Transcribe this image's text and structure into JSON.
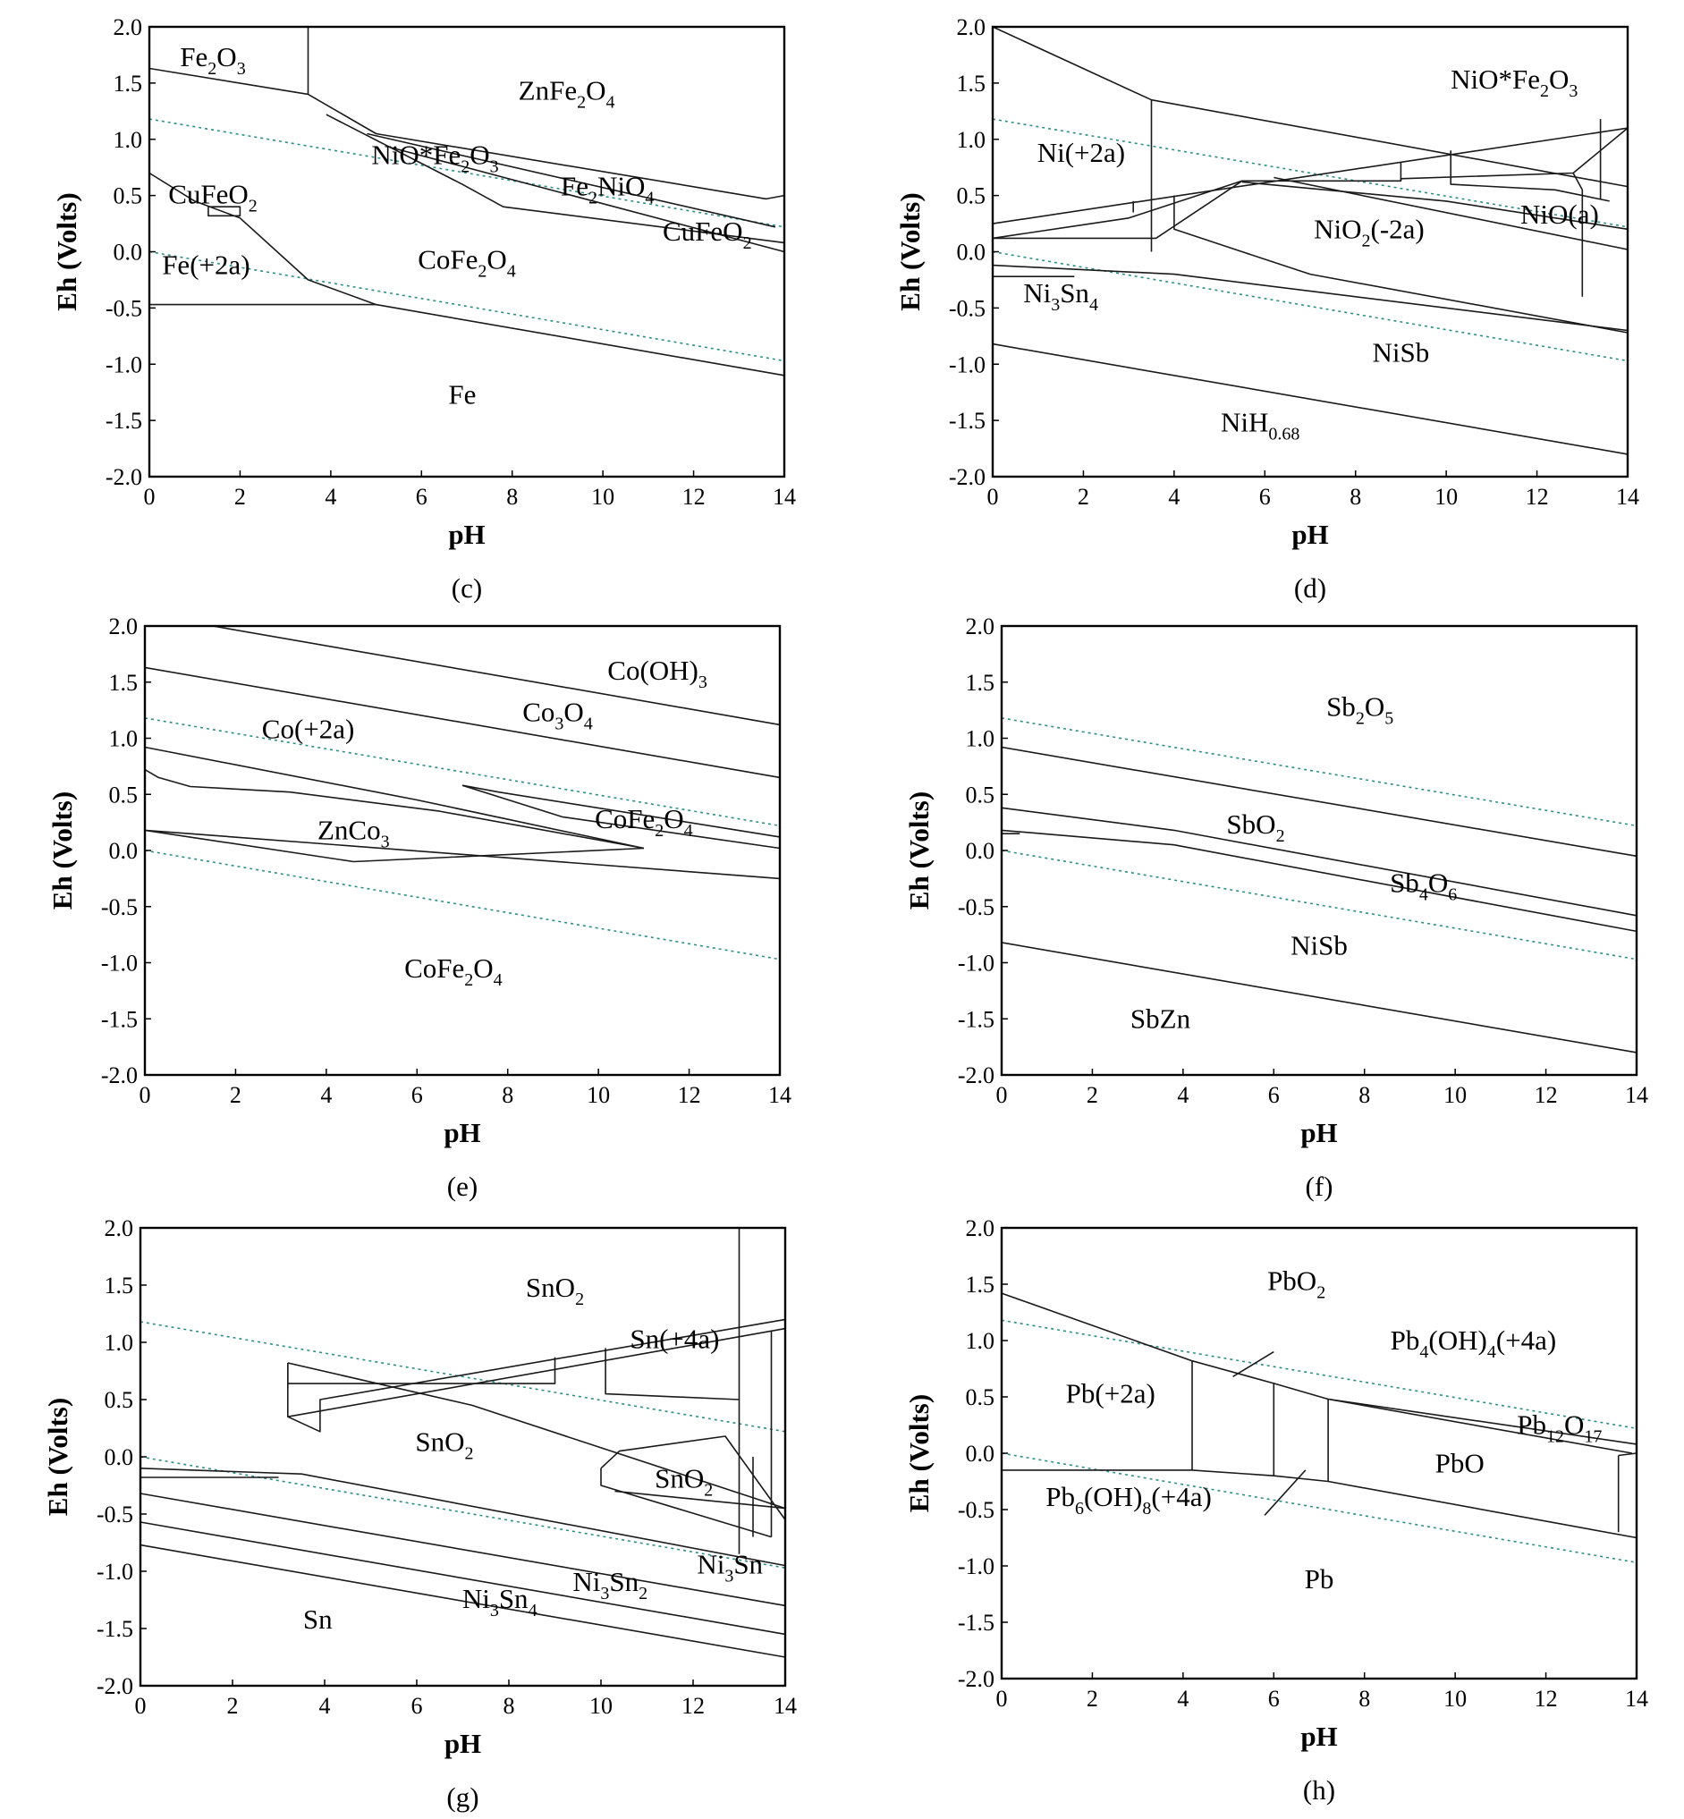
{
  "axes": {
    "xlabel": "pH",
    "ylabel": "Eh (Volts)",
    "xlim": [
      0,
      14
    ],
    "ylim": [
      -2.0,
      2.0
    ],
    "xticks": [
      "0",
      "2",
      "4",
      "6",
      "8",
      "10",
      "12",
      "14"
    ],
    "yticks": [
      "2.0",
      "1.5",
      "1.0",
      "0.5",
      "0.0",
      "-0.5",
      "-1.0",
      "-1.5",
      "-2.0"
    ]
  },
  "water_lines": {
    "upper": [
      [
        0,
        1.18
      ],
      [
        14,
        0.22
      ]
    ],
    "lower": [
      [
        0,
        0.0
      ],
      [
        14,
        -0.97
      ]
    ]
  },
  "panels": [
    {
      "id": "c",
      "caption": "(c)",
      "boundaries": [
        [
          [
            0,
            1.63
          ],
          [
            3.5,
            1.4
          ],
          [
            5,
            1.05
          ],
          [
            13.6,
            0.47
          ],
          [
            14,
            0.5
          ]
        ],
        [
          [
            3.5,
            2.0
          ],
          [
            3.5,
            1.4
          ]
        ],
        [
          [
            3.9,
            1.22
          ],
          [
            6.9,
            0.6
          ],
          [
            7.8,
            0.4
          ],
          [
            14,
            0.08
          ]
        ],
        [
          [
            4.8,
            1.05
          ],
          [
            13.8,
            0.22
          ]
        ],
        [
          [
            5.3,
            0.93
          ],
          [
            14,
            0.0
          ]
        ],
        [
          [
            0,
            0.7
          ],
          [
            1.0,
            0.45
          ],
          [
            2.0,
            0.3
          ],
          [
            3.5,
            -0.25
          ],
          [
            5,
            -0.47
          ],
          [
            14,
            -1.1
          ]
        ],
        [
          [
            0,
            -0.47
          ],
          [
            5,
            -0.47
          ]
        ],
        [
          [
            1.3,
            0.4
          ],
          [
            2.0,
            0.4
          ],
          [
            2.0,
            0.32
          ],
          [
            1.3,
            0.32
          ],
          [
            1.3,
            0.4
          ]
        ]
      ],
      "regions": [
        {
          "text": "Fe2O3",
          "x": 1.4,
          "y": 1.65
        },
        {
          "text": "ZnFe2O4",
          "x": 9.2,
          "y": 1.35
        },
        {
          "text": "NiO*Fe2O3",
          "x": 6.3,
          "y": 0.78
        },
        {
          "text": "Fe2NiO4",
          "x": 10.1,
          "y": 0.5
        },
        {
          "text": "CuFeO2",
          "x": 1.4,
          "y": 0.43
        },
        {
          "text": "CuFeO2",
          "x": 12.3,
          "y": 0.1
        },
        {
          "text": "CoFe2O4",
          "x": 7.0,
          "y": -0.15
        },
        {
          "text": "Fe(+2a)",
          "x": 1.25,
          "y": -0.2
        },
        {
          "text": "Fe",
          "x": 6.9,
          "y": -1.35
        }
      ]
    },
    {
      "id": "d",
      "caption": "(d)",
      "boundaries": [
        [
          [
            0,
            2.0
          ],
          [
            3.5,
            1.35
          ],
          [
            14,
            0.58
          ]
        ],
        [
          [
            3.5,
            1.35
          ],
          [
            3.5,
            0.0
          ]
        ],
        [
          [
            0,
            0.25
          ],
          [
            14,
            1.1
          ]
        ],
        [
          [
            0,
            0.12
          ],
          [
            3.0,
            0.3
          ],
          [
            5.5,
            0.63
          ],
          [
            9.0,
            0.63
          ],
          [
            9.0,
            0.65
          ],
          [
            12.8,
            0.7
          ],
          [
            14,
            1.1
          ]
        ],
        [
          [
            0,
            0.12
          ],
          [
            3.6,
            0.12
          ],
          [
            5.5,
            0.63
          ]
        ],
        [
          [
            3.1,
            0.35
          ],
          [
            3.1,
            0.45
          ]
        ],
        [
          [
            4.0,
            0.5
          ],
          [
            4.0,
            0.2
          ],
          [
            5.5,
            0.0
          ],
          [
            7,
            -0.2
          ],
          [
            14,
            -0.72
          ]
        ],
        [
          [
            5.5,
            0.62
          ],
          [
            10,
            0.45
          ],
          [
            14,
            0.2
          ]
        ],
        [
          [
            6.2,
            0.66
          ],
          [
            14,
            0.02
          ]
        ],
        [
          [
            9,
            0.63
          ],
          [
            9,
            0.8
          ]
        ],
        [
          [
            10.1,
            0.9
          ],
          [
            10.1,
            0.6
          ],
          [
            12.4,
            0.55
          ],
          [
            13.6,
            0.45
          ]
        ],
        [
          [
            12.8,
            0.7
          ],
          [
            13.0,
            0.55
          ],
          [
            13.0,
            -0.4
          ]
        ],
        [
          [
            13.4,
            1.18
          ],
          [
            13.4,
            0.47
          ]
        ],
        [
          [
            0,
            -0.12
          ],
          [
            4,
            -0.2
          ],
          [
            14,
            -0.7
          ]
        ],
        [
          [
            0,
            -0.22
          ],
          [
            1.8,
            -0.22
          ]
        ],
        [
          [
            0,
            -0.82
          ],
          [
            14,
            -1.8
          ]
        ]
      ],
      "regions": [
        {
          "text": "NiO*Fe2O3",
          "x": 11.5,
          "y": 1.45
        },
        {
          "text": "Ni(+2a)",
          "x": 1.95,
          "y": 0.8
        },
        {
          "text": "NiO2(-2a)",
          "x": 8.3,
          "y": 0.12
        },
        {
          "text": "NiO(a)",
          "x": 12.5,
          "y": 0.25
        },
        {
          "text": "Ni3Sn4",
          "x": 1.5,
          "y": -0.45
        },
        {
          "text": "NiSb",
          "x": 9.0,
          "y": -0.98
        },
        {
          "text": "NiH0.68",
          "x": 5.9,
          "y": -1.6
        }
      ]
    },
    {
      "id": "e",
      "caption": "(e)",
      "boundaries": [
        [
          [
            1.5,
            2.0
          ],
          [
            14,
            1.12
          ]
        ],
        [
          [
            0,
            1.63
          ],
          [
            14,
            0.65
          ]
        ],
        [
          [
            0,
            0.92
          ],
          [
            6,
            0.45
          ],
          [
            11,
            0.02
          ]
        ],
        [
          [
            0,
            0.72
          ],
          [
            0.3,
            0.65
          ],
          [
            1.0,
            0.57
          ],
          [
            3.2,
            0.52
          ],
          [
            6.5,
            0.35
          ],
          [
            11,
            0.02
          ]
        ],
        [
          [
            7.0,
            0.58
          ],
          [
            9.2,
            0.3
          ],
          [
            14,
            0.02
          ]
        ],
        [
          [
            7.0,
            0.58
          ],
          [
            7.8,
            0.52
          ],
          [
            14,
            0.12
          ]
        ],
        [
          [
            0,
            0.18
          ],
          [
            4.6,
            -0.1
          ],
          [
            11,
            0.02
          ]
        ],
        [
          [
            0,
            0.18
          ],
          [
            14,
            -0.25
          ]
        ]
      ],
      "regions": [
        {
          "text": "Co(OH)3",
          "x": 11.3,
          "y": 1.52
        },
        {
          "text": "Co3O4",
          "x": 9.1,
          "y": 1.15
        },
        {
          "text": "Co(+2a)",
          "x": 3.6,
          "y": 1.0
        },
        {
          "text": "ZnCo3",
          "x": 4.6,
          "y": 0.1
        },
        {
          "text": "CoFe2O4",
          "x": 11.0,
          "y": 0.2
        },
        {
          "text": "CoFe2O4",
          "x": 6.8,
          "y": -1.13
        }
      ]
    },
    {
      "id": "f",
      "caption": "(f)",
      "boundaries": [
        [
          [
            0,
            0.92
          ],
          [
            14,
            -0.05
          ]
        ],
        [
          [
            0,
            0.38
          ],
          [
            3.8,
            0.18
          ],
          [
            14,
            -0.58
          ]
        ],
        [
          [
            0,
            0.18
          ],
          [
            3.8,
            0.05
          ],
          [
            14,
            -0.72
          ]
        ],
        [
          [
            0,
            0.15
          ],
          [
            0.4,
            0.15
          ]
        ],
        [
          [
            0,
            -0.82
          ],
          [
            14,
            -1.8
          ]
        ]
      ],
      "regions": [
        {
          "text": "Sb2O5",
          "x": 7.9,
          "y": 1.2
        },
        {
          "text": "SbO2",
          "x": 5.6,
          "y": 0.15
        },
        {
          "text": "Sb4O6",
          "x": 9.3,
          "y": -0.37
        },
        {
          "text": "NiSb",
          "x": 7.0,
          "y": -0.93
        },
        {
          "text": "SbZn",
          "x": 3.5,
          "y": -1.58
        }
      ]
    },
    {
      "id": "g",
      "caption": "(g)",
      "boundaries": [
        [
          [
            3.2,
            0.82
          ],
          [
            3.2,
            0.35
          ],
          [
            3.9,
            0.22
          ],
          [
            3.9,
            0.5
          ],
          [
            14,
            1.2
          ]
        ],
        [
          [
            3.2,
            0.82
          ],
          [
            7.2,
            0.45
          ],
          [
            14,
            -0.45
          ]
        ],
        [
          [
            3.2,
            0.82
          ],
          [
            3.2,
            0.6
          ]
        ],
        [
          [
            3.2,
            0.64
          ],
          [
            9.0,
            0.64
          ],
          [
            9.0,
            0.87
          ]
        ],
        [
          [
            3.2,
            0.35
          ],
          [
            14,
            1.12
          ]
        ],
        [
          [
            10.1,
            0.95
          ],
          [
            10.1,
            0.55
          ],
          [
            13.0,
            0.5
          ]
        ],
        [
          [
            13.0,
            2.0
          ],
          [
            13.0,
            -0.85
          ]
        ],
        [
          [
            13.7,
            1.1
          ],
          [
            13.7,
            -0.7
          ]
        ],
        [
          [
            10.0,
            -0.1
          ],
          [
            10.0,
            -0.25
          ],
          [
            13.7,
            -0.7
          ]
        ],
        [
          [
            10.0,
            -0.1
          ],
          [
            10.4,
            0.05
          ],
          [
            12.7,
            0.18
          ],
          [
            14,
            -0.55
          ]
        ],
        [
          [
            10.3,
            -0.3
          ],
          [
            14,
            -0.45
          ]
        ],
        [
          [
            13.3,
            0.0
          ],
          [
            13.3,
            -0.7
          ]
        ],
        [
          [
            0,
            -0.1
          ],
          [
            3.5,
            -0.15
          ],
          [
            14,
            -0.95
          ]
        ],
        [
          [
            0,
            -0.18
          ],
          [
            3.0,
            -0.18
          ]
        ],
        [
          [
            0,
            -0.32
          ],
          [
            14,
            -1.3
          ]
        ],
        [
          [
            0,
            -0.57
          ],
          [
            14,
            -1.55
          ]
        ],
        [
          [
            0,
            -0.77
          ],
          [
            14,
            -1.75
          ]
        ]
      ],
      "regions": [
        {
          "text": "SnO2",
          "x": 9.0,
          "y": 1.4
        },
        {
          "text": "Sn(+4a)",
          "x": 11.6,
          "y": 0.95
        },
        {
          "text": "SnO2",
          "x": 6.6,
          "y": 0.05
        },
        {
          "text": "SnO2",
          "x": 11.8,
          "y": -0.27
        },
        {
          "text": "Ni3Sn",
          "x": 12.8,
          "y": -1.02
        },
        {
          "text": "Ni3Sn2",
          "x": 10.2,
          "y": -1.17
        },
        {
          "text": "Ni3Sn4",
          "x": 7.8,
          "y": -1.32
        },
        {
          "text": "Sn",
          "x": 3.85,
          "y": -1.5
        }
      ]
    },
    {
      "id": "h",
      "caption": "(h)",
      "boundaries": [
        [
          [
            0,
            1.42
          ],
          [
            4.2,
            0.82
          ],
          [
            6,
            0.62
          ],
          [
            7.2,
            0.48
          ],
          [
            14,
            0.08
          ]
        ],
        [
          [
            4.2,
            0.82
          ],
          [
            4.2,
            -0.15
          ]
        ],
        [
          [
            6.0,
            0.62
          ],
          [
            6.0,
            -0.2
          ]
        ],
        [
          [
            7.2,
            0.48
          ],
          [
            7.2,
            -0.25
          ]
        ],
        [
          [
            0,
            -0.15
          ],
          [
            4.2,
            -0.15
          ],
          [
            6.0,
            -0.2
          ],
          [
            7.2,
            -0.25
          ],
          [
            14,
            -0.75
          ]
        ],
        [
          [
            7.2,
            0.48
          ],
          [
            13.9,
            0.0
          ]
        ],
        [
          [
            13.6,
            -0.02
          ],
          [
            13.6,
            -0.7
          ]
        ],
        [
          [
            13.6,
            -0.02
          ],
          [
            14,
            0.0
          ]
        ]
      ],
      "regions": [
        {
          "text": "PbO2",
          "x": 6.5,
          "y": 1.45
        },
        {
          "text": "Pb4(OH)4(+4a)",
          "x": 10.4,
          "y": 0.92
        },
        {
          "text": "Pb(+2a)",
          "x": 2.4,
          "y": 0.45
        },
        {
          "text": "Pb12O17",
          "x": 12.3,
          "y": 0.17
        },
        {
          "text": "PbO",
          "x": 10.1,
          "y": -0.17
        },
        {
          "text": "Pb6(OH)8(+4a)",
          "x": 2.8,
          "y": -0.47
        },
        {
          "text": "Pb",
          "x": 7.0,
          "y": -1.2
        }
      ],
      "leaders": [
        [
          [
            5.1,
            0.68
          ],
          [
            6.0,
            0.9
          ]
        ],
        [
          [
            5.8,
            -0.55
          ],
          [
            6.7,
            -0.15
          ]
        ]
      ]
    }
  ]
}
